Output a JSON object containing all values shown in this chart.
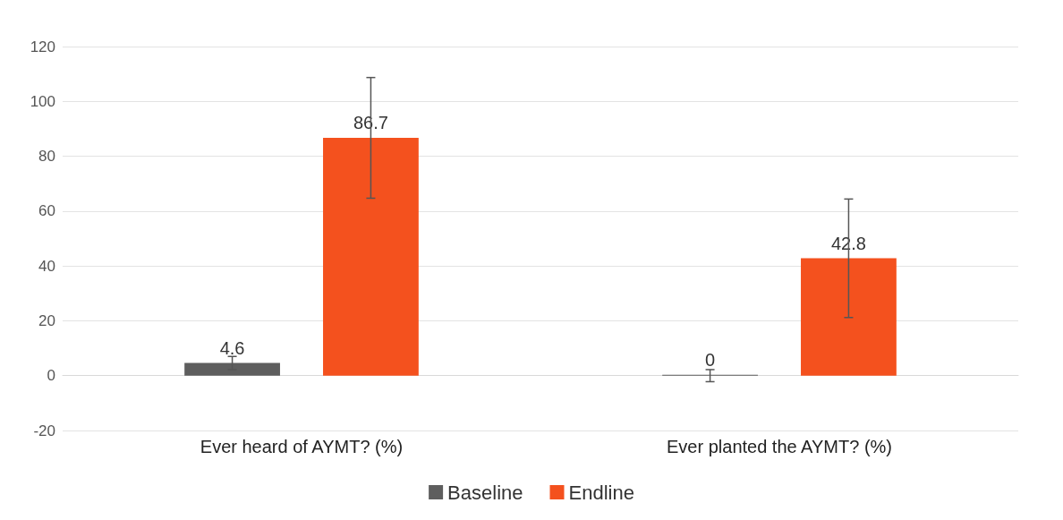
{
  "chart_data": {
    "type": "bar",
    "categories": [
      "Ever heard of AYMT? (%)",
      "Ever planted the AYMT? (%)"
    ],
    "series": [
      {
        "name": "Baseline",
        "color": "#5e5e5e",
        "values": [
          4.6,
          0
        ],
        "errors": [
          2.4,
          2.2
        ]
      },
      {
        "name": "Endline",
        "color": "#f4511e",
        "values": [
          86.7,
          42.8
        ],
        "errors": [
          22,
          21.6
        ]
      }
    ],
    "ylim": [
      -20,
      120
    ],
    "yticks": [
      -20,
      0,
      20,
      40,
      60,
      80,
      100,
      120
    ],
    "grid": "y",
    "legend": "bottom",
    "data_labels": true
  }
}
